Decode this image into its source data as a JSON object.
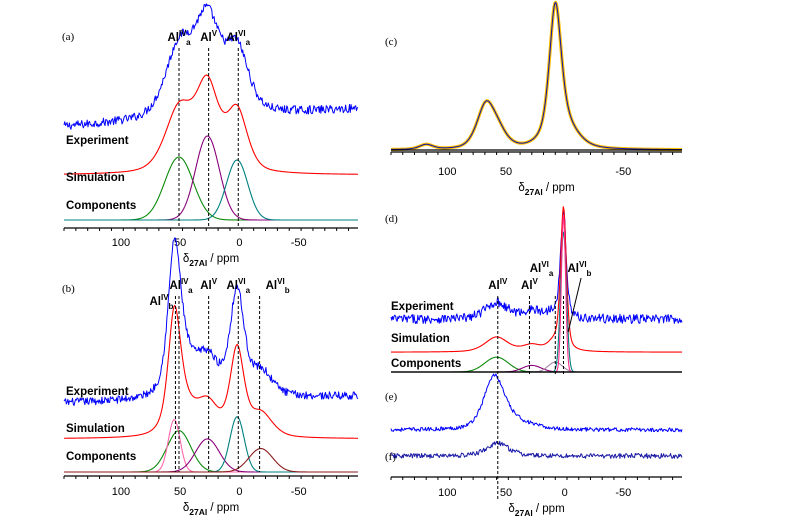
{
  "chart_data": [
    {
      "id": "a",
      "type": "line",
      "panel_label": "(a)",
      "xlabel": {
        "main": "δ",
        "sub": "27Al",
        "rest": " / ppm"
      },
      "xlim": [
        148,
        -100
      ],
      "xticks": [
        "100",
        "50",
        "0",
        "-50"
      ],
      "xtick_values": [
        100,
        50,
        0,
        -50
      ],
      "trace_labels": [
        "Experiment",
        "Simulation",
        "Components"
      ],
      "sites": [
        {
          "base": "Al",
          "sup": "IV",
          "sub": "a",
          "ppm": 51
        },
        {
          "base": "Al",
          "sup": "V",
          "sub": "",
          "ppm": 26
        },
        {
          "base": "Al",
          "sup": "VI",
          "sub": "a",
          "ppm": 1
        }
      ],
      "series": [
        {
          "role": "experiment",
          "color": "#0000ff",
          "noisy": true,
          "offset": 0.62,
          "scale": 1.0,
          "baseline_left": 0.0,
          "baseline_right": 0.12,
          "peaks": [
            [
              51,
              0.46,
              12
            ],
            [
              27,
              0.62,
              11
            ],
            [
              2,
              0.42,
              10
            ]
          ]
        },
        {
          "role": "simulation",
          "color": "#ff0000",
          "offset": 0.3,
          "scale": 1.0,
          "peaks": [
            [
              51,
              0.42,
              12
            ],
            [
              27,
              0.56,
              10
            ],
            [
              2,
              0.4,
              9
            ]
          ]
        },
        {
          "role": "component",
          "color": "#0b8a0b",
          "offset": 0.0,
          "peaks": [
            [
              51,
              0.42,
              12
            ]
          ]
        },
        {
          "role": "component",
          "color": "#8a007a",
          "offset": 0.0,
          "peaks": [
            [
              27,
              0.56,
              10
            ]
          ]
        },
        {
          "role": "component",
          "color": "#008080",
          "offset": 0.0,
          "peaks": [
            [
              2,
              0.4,
              9
            ]
          ]
        }
      ]
    },
    {
      "id": "b",
      "type": "line",
      "panel_label": "(b)",
      "xlabel": {
        "main": "δ",
        "sub": "27Al",
        "rest": " / ppm"
      },
      "xlim": [
        148,
        -100
      ],
      "xticks": [
        "100",
        "50",
        "0",
        "-50"
      ],
      "xtick_values": [
        100,
        50,
        0,
        -50
      ],
      "trace_labels": [
        "Experiment",
        "Simulation",
        "Components"
      ],
      "sites": [
        {
          "base": "Al",
          "sup": "IV",
          "sub": "b",
          "ppm": 54
        },
        {
          "base": "Al",
          "sup": "IV",
          "sub": "a",
          "ppm": 51
        },
        {
          "base": "Al",
          "sup": "V",
          "sub": "",
          "ppm": 26
        },
        {
          "base": "Al",
          "sup": "VI",
          "sub": "a",
          "ppm": 1
        },
        {
          "base": "Al",
          "sup": "VI",
          "sub": "b",
          "ppm": -17
        }
      ],
      "series": [
        {
          "role": "experiment",
          "color": "#0000ff",
          "noisy": true,
          "offset": 0.5,
          "scale": 1.0,
          "baseline_left": 0.0,
          "baseline_right": 0.05,
          "peaks": [
            [
              55,
              0.85,
              5
            ],
            [
              50,
              0.35,
              10
            ],
            [
              27,
              0.28,
              10
            ],
            [
              2,
              0.75,
              6
            ],
            [
              -18,
              0.18,
              10
            ]
          ]
        },
        {
          "role": "simulation",
          "color": "#ff0000",
          "offset": 0.24,
          "scale": 1.0,
          "peaks": [
            [
              55,
              0.7,
              5
            ],
            [
              50,
              0.28,
              10
            ],
            [
              27,
              0.24,
              10
            ],
            [
              2,
              0.62,
              6
            ],
            [
              -18,
              0.17,
              10
            ]
          ]
        },
        {
          "role": "component",
          "color": "#0b8a0b",
          "offset": 0.0,
          "peaks": [
            [
              51,
              0.3,
              10
            ]
          ]
        },
        {
          "role": "component",
          "color": "#ff66aa",
          "offset": 0.0,
          "peaks": [
            [
              55,
              0.38,
              5
            ]
          ]
        },
        {
          "role": "component",
          "color": "#8a007a",
          "offset": 0.0,
          "peaks": [
            [
              27,
              0.24,
              10
            ]
          ]
        },
        {
          "role": "component",
          "color": "#008080",
          "offset": 0.0,
          "peaks": [
            [
              2,
              0.4,
              6
            ]
          ]
        },
        {
          "role": "component",
          "color": "#8b1a1a",
          "offset": 0.0,
          "peaks": [
            [
              -18,
              0.17,
              10
            ]
          ]
        }
      ]
    },
    {
      "id": "c",
      "type": "line",
      "panel_label": "(c)",
      "xlabel": {
        "main": "δ",
        "sub": "27Al",
        "rest": " / ppm"
      },
      "xlim": [
        148,
        -100
      ],
      "xticks": [
        "100",
        "50",
        "-50"
      ],
      "xtick_values": [
        100,
        50,
        -50
      ],
      "trace_labels": [],
      "sites": [],
      "series": [
        {
          "role": "fit",
          "color": "#ffc000",
          "width": 3.2,
          "offset": 0.0,
          "peaks": [
            [
              118,
              0.04,
              6
            ],
            [
              67,
              0.36,
              8
            ],
            [
              56,
              0.1,
              8
            ],
            [
              8,
              1.0,
              5
            ],
            [
              3,
              0.25,
              12
            ]
          ]
        },
        {
          "role": "experiment",
          "color": "#1a1aa6",
          "width": 1.1,
          "offset": 0.0,
          "peaks": [
            [
              118,
              0.04,
              6
            ],
            [
              67,
              0.36,
              8
            ],
            [
              56,
              0.1,
              8
            ],
            [
              8,
              1.0,
              5
            ],
            [
              3,
              0.25,
              12
            ]
          ]
        }
      ]
    },
    {
      "id": "d",
      "type": "line",
      "panel_label": "(d)",
      "xlabel": null,
      "xlim": [
        148,
        -100
      ],
      "trace_labels": [
        "Experiment",
        "Simulation",
        "Components"
      ],
      "sites": [
        {
          "base": "Al",
          "sup": "IV",
          "sub": "",
          "ppm": 57
        },
        {
          "base": "Al",
          "sup": "V",
          "sub": "",
          "ppm": 30
        },
        {
          "base": "Al",
          "sup": "VI",
          "sub": "a",
          "ppm": 8
        },
        {
          "base": "Al",
          "sup": "VI",
          "sub": "b",
          "ppm": 1
        }
      ],
      "series": [
        {
          "role": "experiment",
          "color": "#0000ff",
          "noisy": true,
          "offset": 0.32,
          "scale": 1.0,
          "baseline_left": 0.0,
          "baseline_right": 0.0,
          "peaks": [
            [
              58,
              0.1,
              10
            ],
            [
              28,
              0.05,
              8
            ],
            [
              8,
              0.05,
              6
            ],
            [
              1,
              0.62,
              2.5
            ]
          ]
        },
        {
          "role": "simulation",
          "color": "#ff0000",
          "offset": 0.12,
          "scale": 1.0,
          "peaks": [
            [
              58,
              0.09,
              10
            ],
            [
              28,
              0.04,
              8
            ],
            [
              8,
              0.06,
              6
            ],
            [
              1,
              0.85,
              2.5
            ]
          ]
        },
        {
          "role": "component",
          "color": "#0b8a0b",
          "offset": 0.0,
          "peaks": [
            [
              58,
              0.09,
              10
            ]
          ]
        },
        {
          "role": "component",
          "color": "#8a007a",
          "offset": 0.0,
          "peaks": [
            [
              28,
              0.04,
              8
            ]
          ]
        },
        {
          "role": "component",
          "color": "#aa88aa",
          "offset": 0.0,
          "peaks": [
            [
              8,
              0.06,
              6
            ]
          ]
        },
        {
          "role": "component",
          "color": "#008080",
          "offset": 0.0,
          "peaks": [
            [
              1,
              0.85,
              2.5
            ]
          ]
        },
        {
          "role": "component",
          "color": "#ff2d8a",
          "offset": 0.0,
          "peaks": [
            [
              1,
              0.95,
              1.8
            ]
          ]
        }
      ]
    },
    {
      "id": "e",
      "type": "line",
      "panel_label": "(e)",
      "xlabel": null,
      "xlim": [
        148,
        -100
      ],
      "trace_labels": [],
      "sites": [],
      "series": [
        {
          "role": "experiment",
          "color": "#0000ff",
          "noisy": true,
          "offset": 0.1,
          "scale": 1.0,
          "baseline_left": 0.0,
          "baseline_right": 0.0,
          "peaks": [
            [
              60,
              0.75,
              9
            ],
            [
              40,
              0.1,
              14
            ]
          ]
        }
      ]
    },
    {
      "id": "f",
      "type": "line",
      "panel_label": "(f)",
      "xlabel": {
        "main": "δ",
        "sub": "27Al",
        "rest": " / ppm"
      },
      "xlim": [
        148,
        -100
      ],
      "xticks": [
        "100",
        "50",
        "0",
        "-50"
      ],
      "xtick_values": [
        100,
        50,
        0,
        -50
      ],
      "trace_labels": [],
      "sites": [],
      "shared_line_ppm": 57,
      "series": [
        {
          "role": "experiment",
          "color": "#1a1aa6",
          "noisy": true,
          "offset": 0.2,
          "scale": 1.0,
          "baseline_left": 0.0,
          "baseline_right": 0.0,
          "peaks": [
            [
              57,
              0.18,
              10
            ]
          ]
        }
      ]
    }
  ]
}
